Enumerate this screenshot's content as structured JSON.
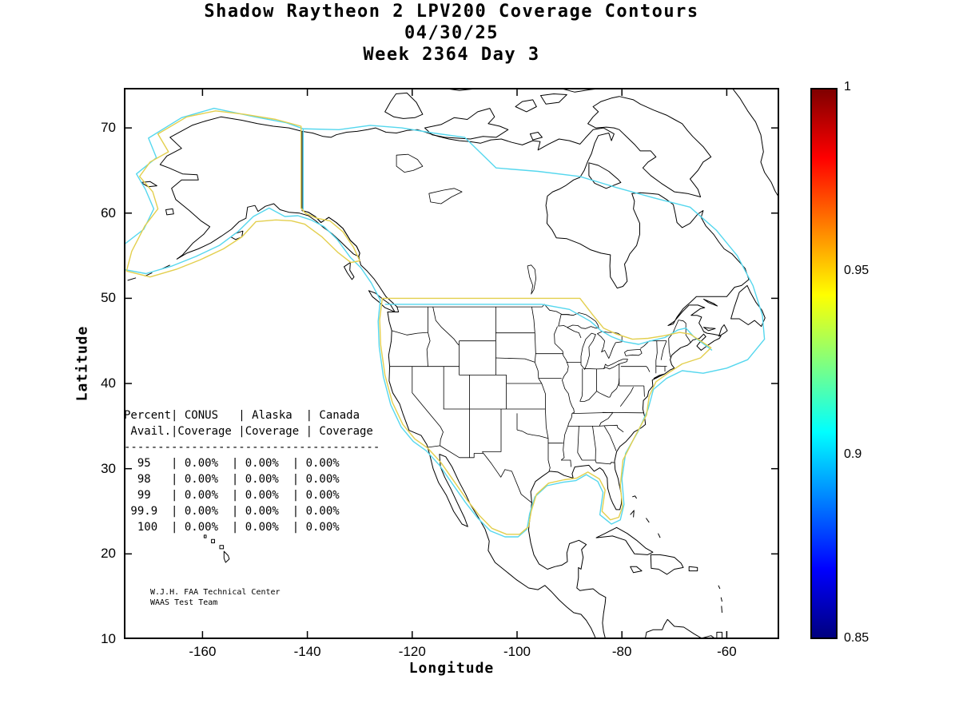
{
  "figure_title": {
    "line1": "Shadow Raytheon 2 LPV200 Coverage Contours",
    "line2": "04/30/25",
    "line3": "Week 2364 Day 3"
  },
  "axes": {
    "x_label": "Longitude",
    "y_label": "Latitude",
    "x_tick_values": [
      -160,
      -140,
      -120,
      -100,
      -80,
      -60
    ],
    "x_tick_labels": [
      "-160",
      "-140",
      "-120",
      "-100",
      "-80",
      "-60"
    ],
    "y_tick_values": [
      70,
      60,
      50,
      40,
      30,
      20,
      10
    ],
    "y_tick_labels": [
      "70",
      "60",
      "50",
      "40",
      "30",
      "20",
      "10"
    ]
  },
  "colorbar": {
    "min": 0.85,
    "max": 1,
    "colormap": "jet",
    "tick_values": [
      1,
      0.95,
      0.9,
      0.85
    ],
    "tick_labels": [
      "1",
      "0.95",
      "0.9",
      "0.85"
    ],
    "gradient_colors": [
      "#7f0000",
      "#ff0000",
      "#ffff00",
      "#00ffff",
      "#0000ff",
      "#00007f"
    ],
    "gradient_positions": [
      0,
      12.5,
      37.5,
      62.5,
      87.5,
      100
    ]
  },
  "coverage_table": {
    "header": [
      "Percent",
      "CONUS",
      "Alaska",
      "Canada"
    ],
    "subheader": [
      "Avail.",
      "Coverage",
      "Coverage",
      "Coverage"
    ],
    "rows": [
      [
        "95",
        "0.00%",
        "0.00%",
        "0.00%"
      ],
      [
        "98",
        "0.00%",
        "0.00%",
        "0.00%"
      ],
      [
        "99",
        "0.00%",
        "0.00%",
        "0.00%"
      ],
      [
        "99.9",
        "0.00%",
        "0.00%",
        "0.00%"
      ],
      [
        "100",
        "0.00%",
        "0.00%",
        "0.00%"
      ]
    ]
  },
  "attribution": {
    "line1": "W.J.H. FAA Technical Center",
    "line2": "WAAS Test Team"
  },
  "contours": {
    "levels": [
      {
        "value": 0.95,
        "color": "#e3cf4e"
      },
      {
        "value": 0.9,
        "color": "#55d7ee"
      }
    ]
  },
  "chart_data": {
    "type": "table",
    "title": "Shadow Raytheon 2 LPV200 Coverage Contours",
    "subtitle_date": "04/30/25",
    "subtitle_week": "Week 2364 Day 3",
    "xlabel": "Longitude",
    "ylabel": "Latitude",
    "xlim": [
      -175,
      -50
    ],
    "ylim": [
      10,
      75
    ],
    "grid": false,
    "colorbar_range": [
      0.85,
      1
    ],
    "colorbar_ticks": [
      1,
      0.95,
      0.9,
      0.85
    ],
    "colormap": "jet",
    "contour_levels": [
      {
        "value": 0.95,
        "color": "#e3cf4e"
      },
      {
        "value": 0.9,
        "color": "#55d7ee"
      }
    ],
    "columns": [
      "Percent Avail.",
      "CONUS Coverage",
      "Alaska Coverage",
      "Canada Coverage"
    ],
    "rows": [
      [
        "95",
        "0.00%",
        "0.00%",
        "0.00%"
      ],
      [
        "98",
        "0.00%",
        "0.00%",
        "0.00%"
      ],
      [
        "99",
        "0.00%",
        "0.00%",
        "0.00%"
      ],
      [
        "99.9",
        "0.00%",
        "0.00%",
        "0.00%"
      ],
      [
        "100",
        "0.00%",
        "0.00%",
        "0.00%"
      ]
    ]
  }
}
